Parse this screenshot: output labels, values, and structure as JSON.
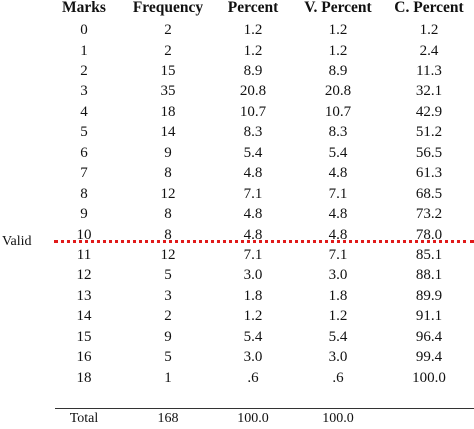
{
  "headers": {
    "marks": "Marks",
    "frequency": "Frequency",
    "percent": "Percent",
    "valid_percent": "V. Percent",
    "cumulative_percent": "C. Percent"
  },
  "group_label": "Valid",
  "rows": [
    {
      "marks": "0",
      "frequency": "2",
      "percent": "1.2",
      "valid_percent": "1.2",
      "cumulative_percent": "1.2"
    },
    {
      "marks": "1",
      "frequency": "2",
      "percent": "1.2",
      "valid_percent": "1.2",
      "cumulative_percent": "2.4"
    },
    {
      "marks": "2",
      "frequency": "15",
      "percent": "8.9",
      "valid_percent": "8.9",
      "cumulative_percent": "11.3"
    },
    {
      "marks": "3",
      "frequency": "35",
      "percent": "20.8",
      "valid_percent": "20.8",
      "cumulative_percent": "32.1"
    },
    {
      "marks": "4",
      "frequency": "18",
      "percent": "10.7",
      "valid_percent": "10.7",
      "cumulative_percent": "42.9"
    },
    {
      "marks": "5",
      "frequency": "14",
      "percent": "8.3",
      "valid_percent": "8.3",
      "cumulative_percent": "51.2"
    },
    {
      "marks": "6",
      "frequency": "9",
      "percent": "5.4",
      "valid_percent": "5.4",
      "cumulative_percent": "56.5"
    },
    {
      "marks": "7",
      "frequency": "8",
      "percent": "4.8",
      "valid_percent": "4.8",
      "cumulative_percent": "61.3"
    },
    {
      "marks": "8",
      "frequency": "12",
      "percent": "7.1",
      "valid_percent": "7.1",
      "cumulative_percent": "68.5"
    },
    {
      "marks": "9",
      "frequency": "8",
      "percent": "4.8",
      "valid_percent": "4.8",
      "cumulative_percent": "73.2"
    },
    {
      "marks": "10",
      "frequency": "8",
      "percent": "4.8",
      "valid_percent": "4.8",
      "cumulative_percent": "78.0"
    },
    {
      "marks": "11",
      "frequency": "12",
      "percent": "7.1",
      "valid_percent": "7.1",
      "cumulative_percent": "85.1"
    },
    {
      "marks": "12",
      "frequency": "5",
      "percent": "3.0",
      "valid_percent": "3.0",
      "cumulative_percent": "88.1"
    },
    {
      "marks": "13",
      "frequency": "3",
      "percent": "1.8",
      "valid_percent": "1.8",
      "cumulative_percent": "89.9"
    },
    {
      "marks": "14",
      "frequency": "2",
      "percent": "1.2",
      "valid_percent": "1.2",
      "cumulative_percent": "91.1"
    },
    {
      "marks": "15",
      "frequency": "9",
      "percent": "5.4",
      "valid_percent": "5.4",
      "cumulative_percent": "96.4"
    },
    {
      "marks": "16",
      "frequency": "5",
      "percent": "3.0",
      "valid_percent": "3.0",
      "cumulative_percent": "99.4"
    },
    {
      "marks": "18",
      "frequency": "1",
      "percent": ".6",
      "valid_percent": ".6",
      "cumulative_percent": "100.0"
    }
  ],
  "total": {
    "label": "Total",
    "frequency": "168",
    "percent": "100.0",
    "valid_percent": "100.0"
  },
  "colors": {
    "cut_line": "#e01a1a",
    "text": "#111111"
  }
}
